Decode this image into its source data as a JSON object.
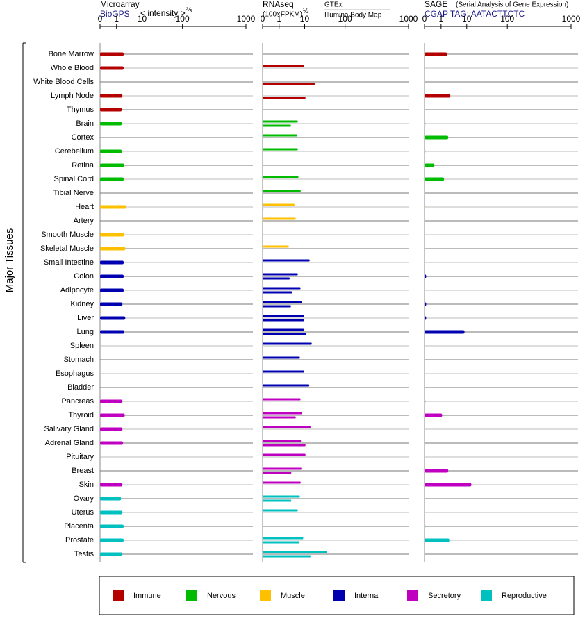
{
  "chart_data": {
    "type": "bar",
    "y_label": "Major Tissues",
    "legend": "bottom",
    "groups": [
      {
        "name": "Immune",
        "color": "#b50000",
        "categories": [
          "Bone Marrow",
          "Whole Blood",
          "White Blood Cells",
          "Lymph Node",
          "Thymus"
        ]
      },
      {
        "name": "Nervous",
        "color": "#00bb00",
        "categories": [
          "Brain",
          "Cortex",
          "Cerebellum",
          "Retina",
          "Spinal Cord",
          "Tibial Nerve"
        ]
      },
      {
        "name": "Muscle",
        "color": "#ffc000",
        "categories": [
          "Heart",
          "Artery",
          "Smooth Muscle",
          "Skeletal Muscle"
        ]
      },
      {
        "name": "Internal",
        "color": "#0000b0",
        "categories": [
          "Small Intestine",
          "Colon",
          "Adipocyte",
          "Kidney",
          "Liver",
          "Lung",
          "Spleen",
          "Stomach",
          "Esophagus",
          "Bladder"
        ]
      },
      {
        "name": "Secretory",
        "color": "#c000c0",
        "categories": [
          "Pancreas",
          "Thyroid",
          "Salivary Gland",
          "Adrenal Gland",
          "Pituitary",
          "Breast",
          "Skin"
        ]
      },
      {
        "name": "Reproductive",
        "color": "#00c0c0",
        "categories": [
          "Ovary",
          "Uterus",
          "Placenta",
          "Prostate",
          "Testis"
        ]
      }
    ],
    "panels": [
      {
        "title": "Microarray",
        "source": "BioGPS",
        "scale_label": "< intensity >",
        "scale_exp": "⅔",
        "xlim": [
          0,
          1000
        ],
        "xticks": [
          0,
          1,
          10,
          100,
          1000
        ],
        "series": [
          {
            "values": [
              1.9,
              1.9,
              null,
              1.7,
              1.6,
              1.6,
              null,
              1.6,
              2.0,
              1.9,
              null,
              2.4,
              null,
              2.0,
              2.2,
              1.9,
              1.9,
              1.9,
              1.7,
              2.2,
              2.0,
              null,
              null,
              null,
              null,
              1.7,
              2.1,
              1.7,
              1.8,
              null,
              null,
              1.7,
              1.5,
              1.7,
              1.9,
              1.9,
              1.7
            ]
          }
        ]
      },
      {
        "title": "RNAseq",
        "scale_label": "(100×FPKM)",
        "scale_exp": "½",
        "xlim": [
          0,
          1000
        ],
        "xticks": [
          0,
          1,
          10,
          100,
          1000
        ],
        "series": [
          {
            "name": "GTEx",
            "values": [
              null,
              9.3,
              null,
              null,
              null,
              5.4,
              5.1,
              5.4,
              null,
              5.7,
              7.0,
              4.0,
              4.5,
              null,
              2.4,
              13.3,
              5.4,
              6.9,
              7.8,
              9.3,
              9.3,
              15,
              6.5,
              9.5,
              13,
              6.9,
              7.8,
              14,
              7.2,
              10.5,
              7.5,
              7.0,
              6.5,
              5.4,
              null,
              8.8,
              35
            ]
          },
          {
            "name": "Illumina Body Map",
            "values": [
              null,
              null,
              17.8,
              10.5,
              null,
              2.9,
              null,
              null,
              null,
              null,
              null,
              0.05,
              null,
              null,
              0.05,
              null,
              2.6,
              3.2,
              2.9,
              9.3,
              11,
              null,
              null,
              null,
              null,
              null,
              4.5,
              null,
              10.5,
              null,
              3.0,
              null,
              3.0,
              null,
              null,
              6.2,
              14
            ]
          }
        ]
      },
      {
        "title": "SAGE",
        "subtitle": "(Serial Analysis of Gene Expression)",
        "source": "CGAP TAG: AATACTTCTC",
        "xlim": [
          0,
          1000
        ],
        "xticks": [
          0,
          1,
          10,
          100,
          1000
        ],
        "series": [
          {
            "values": [
              1.7,
              null,
              null,
              2.3,
              null,
              0.05,
              1.9,
              0.05,
              0.6,
              1.3,
              null,
              0.05,
              null,
              null,
              0.05,
              null,
              0.1,
              null,
              0.1,
              0.1,
              8.2,
              null,
              null,
              null,
              null,
              0.05,
              1.1,
              null,
              null,
              null,
              1.9,
              13,
              null,
              null,
              0.05,
              2.1,
              null
            ]
          }
        ]
      }
    ]
  }
}
